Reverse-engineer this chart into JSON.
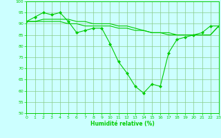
{
  "line1_x": [
    0,
    1,
    2,
    3,
    4,
    5,
    6,
    7,
    8,
    9,
    10,
    11,
    12,
    13,
    14,
    15,
    16,
    17,
    18,
    19,
    20,
    21,
    22,
    23
  ],
  "line1_y": [
    91,
    93,
    95,
    94,
    95,
    91,
    86,
    87,
    88,
    88,
    81,
    73,
    68,
    62,
    59,
    63,
    62,
    77,
    83,
    84,
    85,
    86,
    89,
    89
  ],
  "line2_x": [
    0,
    1,
    2,
    3,
    4,
    5,
    6,
    7,
    8,
    9,
    10,
    11,
    12,
    13,
    14,
    15,
    16,
    17,
    18,
    19,
    20,
    21,
    22,
    23
  ],
  "line2_y": [
    91,
    91,
    92,
    92,
    92,
    92,
    91,
    91,
    90,
    90,
    90,
    89,
    89,
    88,
    87,
    86,
    86,
    85,
    85,
    85,
    85,
    85,
    85,
    89
  ],
  "line3_x": [
    0,
    1,
    2,
    3,
    4,
    5,
    6,
    7,
    8,
    9,
    10,
    11,
    12,
    13,
    14,
    15,
    16,
    17,
    18,
    19,
    20,
    21,
    22,
    23
  ],
  "line3_y": [
    91,
    91,
    91,
    91,
    91,
    90,
    90,
    89,
    89,
    89,
    89,
    88,
    88,
    87,
    87,
    86,
    86,
    86,
    85,
    85,
    85,
    85,
    85,
    89
  ],
  "line_color": "#00cc00",
  "bg_color": "#ccffff",
  "grid_color": "#88cc88",
  "xlabel": "Humidité relative (%)",
  "ylim": [
    50,
    100
  ],
  "xlim": [
    0,
    23
  ],
  "yticks": [
    50,
    55,
    60,
    65,
    70,
    75,
    80,
    85,
    90,
    95,
    100
  ],
  "xticks": [
    0,
    1,
    2,
    3,
    4,
    5,
    6,
    7,
    8,
    9,
    10,
    11,
    12,
    13,
    14,
    15,
    16,
    17,
    18,
    19,
    20,
    21,
    22,
    23
  ]
}
